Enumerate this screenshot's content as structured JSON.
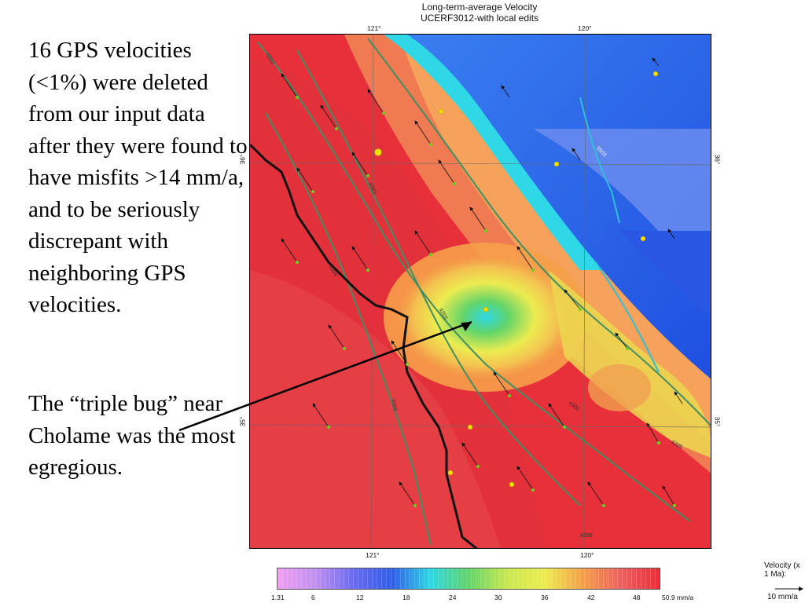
{
  "slide": {
    "paragraph1": "16 GPS velocities (<1%) were deleted from our input data after they were found to have misfits >14 mm/a, and to be seriously discrepant with neighboring GPS velocities.",
    "paragraph2": "The “triple bug” near Cholame was the most egregious."
  },
  "map": {
    "title_line1": "Long-term-average Velocity",
    "title_line2": "UCERF3012-with local edits",
    "top_ticks": [
      "121°",
      "120°"
    ],
    "bottom_ticks": [
      "121°",
      "120°"
    ],
    "left_ticks": [
      "36°",
      "35°"
    ],
    "right_ticks": [
      "36°",
      "35°"
    ],
    "fault_labels": [
      "4202",
      "4303",
      "3903",
      "4203",
      "4305",
      "4304",
      "6505",
      "4205",
      "4306"
    ],
    "colors": {
      "red": "#e8303a",
      "orange": "#f4a04a",
      "yellow": "#ecec50",
      "green": "#62d46a",
      "cyan": "#2fd8e6",
      "blue": "#2f5fe6",
      "fault_lines": "#3f8f62",
      "coast_line": "#111111",
      "gps_site": "#6ccf1e",
      "deleted_site": "#f0e000"
    }
  },
  "color_scale": {
    "min_label": "1.31",
    "ticks": [
      "6",
      "12",
      "18",
      "24",
      "30",
      "36",
      "42",
      "48"
    ],
    "max_label": "50.9 mm/a"
  },
  "velocity_key": {
    "title": "Velocity (x 1 Ma):",
    "reference": "10 mm/a"
  }
}
